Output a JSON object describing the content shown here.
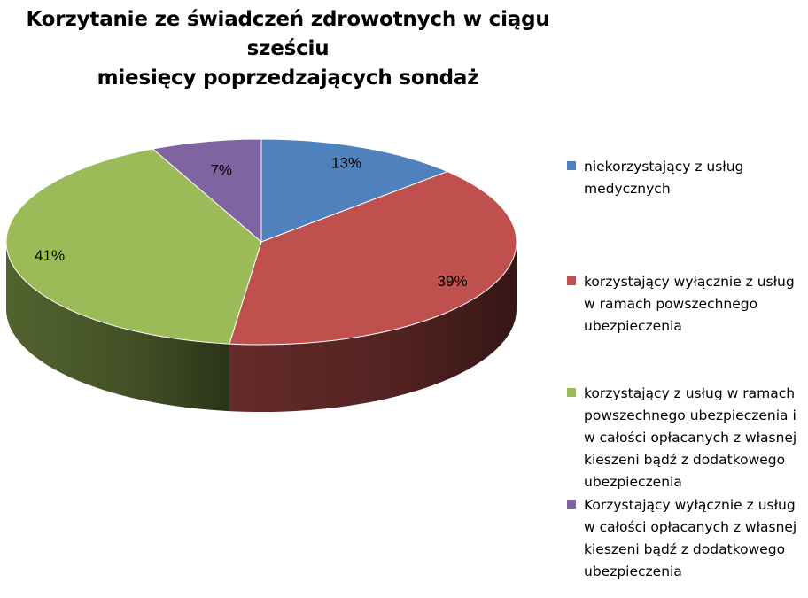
{
  "chart_data": {
    "type": "pie",
    "title_lines": [
      "Korzytanie ze świadczeń zdrowotnych w ciągu sześciu",
      "miesięcy poprzedzających sondaż"
    ],
    "slices": [
      {
        "label": "niekorzystający z usług medycznych",
        "value": 13,
        "value_label": "13%",
        "color": "#4F81BD"
      },
      {
        "label": "korzystający wyłącznie z usług w ramach powszechnego ubezpieczenia",
        "value": 39,
        "value_label": "39%",
        "color": "#C0504D"
      },
      {
        "label": "korzystający z usług w ramach powszechnego ubezpieczenia i w całości opłacanych z własnej kieszeni bądź z dodatkowego ubezpieczenia",
        "value": 41,
        "value_label": "41%",
        "color": "#9BBB59"
      },
      {
        "label": "Korzystający wyłącznie z usług w całości opłacanych z własnej kieszeni bądź z dodatkowego ubezpieczenia",
        "value": 7,
        "value_label": "7%",
        "color": "#8064A2"
      }
    ],
    "legend_position": "right",
    "legend_lines": [
      [
        "niekorzystający z usług",
        "medycznych"
      ],
      [
        "korzystający wyłącznie z usług",
        "w ramach powszechnego",
        "ubezpieczenia"
      ],
      [
        "korzystający z usług w ramach",
        "powszechnego ubezpieczenia i",
        "w całości opłacanych z własnej",
        "kieszeni bądź z dodatkowego",
        "ubezpieczenia"
      ],
      [
        "Korzystający wyłącznie z usług",
        "w całości opłacanych z własnej",
        "kieszeni bądź z dodatkowego",
        "ubezpieczenia"
      ]
    ]
  }
}
